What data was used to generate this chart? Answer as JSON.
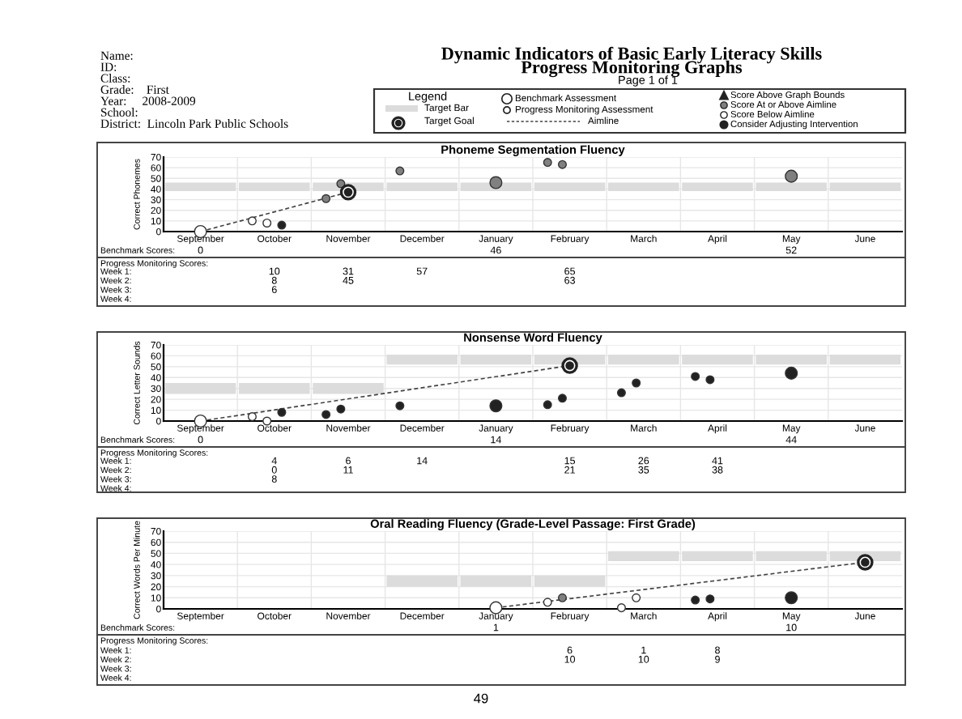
{
  "chart_data": [
    {
      "type": "other",
      "title": "Dynamic Indicators of Basic Early Literacy Skills",
      "subtitle": "Progress Monitoring Graphs",
      "annotations": [
        "Name:",
        "ID:",
        "Class:",
        "Grade:    First",
        "Year:     2008-2009",
        "School:",
        "District:  Lincoln Park Public Schools",
        "Page 1 of 1",
        "Legend",
        "Target Bar",
        "Target Goal",
        "Benchmark Assessment",
        "Progress Monitoring Assessment",
        "Aimline",
        "Score Above Graph Bounds",
        "Score At or Above Aimline",
        "Score Below Aimline",
        "Consider Adjusting Intervention",
        "49"
      ]
    },
    {
      "type": "scatter",
      "title": "Phoneme Segmentation Fluency",
      "ylabel": "Correct Phonemes",
      "categories": [
        "September",
        "October",
        "November",
        "December",
        "January",
        "February",
        "March",
        "April",
        "May",
        "June"
      ],
      "ylim": [
        0,
        70
      ],
      "yticks": [
        0,
        10,
        20,
        30,
        40,
        50,
        60,
        70
      ],
      "grid": true,
      "annotations": [
        "Benchmark Scores:",
        "Progress Monitoring Scores:",
        "Week 1:",
        "Week 2:",
        "Week 3:",
        "Week 4:",
        "6"
      ],
      "series": [
        {
          "type": "bar",
          "color": "#dcdcdc",
          "base": [
            38,
            38,
            38,
            38,
            38,
            38,
            38,
            38,
            38,
            38
          ],
          "values": [
            8,
            8,
            8,
            8,
            8,
            8,
            8,
            8,
            8,
            8
          ]
        },
        {
          "type": "line",
          "line_style": "dashed",
          "color": "#444444",
          "values": [
            0,
            null,
            37,
            null,
            null,
            null,
            null,
            null,
            null,
            null
          ]
        },
        {
          "type": "scatter",
          "values": [
            0,
            null,
            null,
            null,
            46,
            null,
            null,
            null,
            52,
            null
          ],
          "value_labels": [
            "0",
            null,
            null,
            null,
            "46",
            null,
            null,
            null,
            "52",
            null
          ],
          "colors": [
            "#ffffff",
            null,
            null,
            null,
            "#808080",
            null,
            null,
            null,
            "#808080",
            null
          ]
        },
        {
          "type": "scatter",
          "values": [
            null,
            10,
            31,
            57,
            null,
            65,
            null,
            null,
            null,
            null
          ],
          "value_labels": [
            null,
            "10",
            "31",
            "57",
            null,
            "65",
            null,
            null,
            null,
            null
          ],
          "colors": [
            null,
            "#ffffff",
            "#808080",
            "#808080",
            null,
            "#808080",
            null,
            null,
            null,
            null
          ]
        },
        {
          "type": "scatter",
          "values": [
            null,
            8,
            45,
            null,
            null,
            63,
            null,
            null,
            null,
            null
          ],
          "value_labels": [
            null,
            "8",
            "45",
            null,
            null,
            "63",
            null,
            null,
            null,
            null
          ],
          "colors": [
            null,
            "#ffffff",
            "#808080",
            null,
            null,
            "#808080",
            null,
            null,
            null,
            null
          ]
        },
        {
          "type": "scatter",
          "values": [
            null,
            6,
            null,
            null,
            null,
            null,
            null,
            null,
            null,
            null
          ],
          "colors": [
            null,
            "#222222",
            null,
            null,
            null,
            null,
            null,
            null,
            null,
            null
          ]
        },
        {
          "type": "scatter",
          "color": "#222222",
          "values": [
            null,
            null,
            37,
            null,
            null,
            null,
            null,
            null,
            null,
            null
          ]
        }
      ]
    },
    {
      "type": "scatter",
      "title": "Nonsense Word Fluency",
      "ylabel": "Correct Letter Sounds",
      "categories": [
        "September",
        "October",
        "November",
        "December",
        "January",
        "February",
        "March",
        "April",
        "May",
        "June"
      ],
      "ylim": [
        0,
        70
      ],
      "yticks": [
        0,
        10,
        20,
        30,
        40,
        50,
        60,
        70
      ],
      "grid": true,
      "annotations": [
        "Benchmark Scores:",
        "Progress Monitoring Scores:",
        "Week 1:",
        "Week 2:",
        "Week 3:",
        "Week 4:",
        "8"
      ],
      "series": [
        {
          "type": "bar",
          "color": "#dcdcdc",
          "base": [
            25,
            25,
            25,
            52,
            52,
            52,
            52,
            52,
            52,
            52
          ],
          "values": [
            10,
            10,
            10,
            9,
            9,
            9,
            9,
            9,
            9,
            9
          ]
        },
        {
          "type": "line",
          "line_style": "dashed",
          "color": "#444444",
          "values": [
            0,
            null,
            null,
            null,
            null,
            51,
            null,
            null,
            null,
            null
          ]
        },
        {
          "type": "scatter",
          "values": [
            0,
            null,
            null,
            null,
            14,
            null,
            null,
            null,
            44,
            null
          ],
          "value_labels": [
            "0",
            null,
            null,
            null,
            "14",
            null,
            null,
            null,
            "44",
            null
          ],
          "colors": [
            "#ffffff",
            null,
            null,
            null,
            "#222222",
            null,
            null,
            null,
            "#222222",
            null
          ]
        },
        {
          "type": "scatter",
          "values": [
            null,
            4,
            6,
            14,
            null,
            15,
            26,
            41,
            null,
            null
          ],
          "value_labels": [
            null,
            "4",
            "6",
            "14",
            null,
            "15",
            "26",
            "41",
            null,
            null
          ],
          "colors": [
            null,
            "#ffffff",
            "#222222",
            "#222222",
            null,
            "#222222",
            "#222222",
            "#222222",
            null,
            null
          ]
        },
        {
          "type": "scatter",
          "values": [
            null,
            0,
            11,
            null,
            null,
            21,
            35,
            38,
            null,
            null
          ],
          "value_labels": [
            null,
            "0",
            "11",
            null,
            null,
            "21",
            "35",
            "38",
            null,
            null
          ],
          "colors": [
            null,
            "#ffffff",
            "#222222",
            null,
            null,
            "#222222",
            "#222222",
            "#222222",
            null,
            null
          ]
        },
        {
          "type": "scatter",
          "values": [
            null,
            8,
            null,
            null,
            null,
            null,
            null,
            null,
            null,
            null
          ],
          "colors": [
            null,
            "#222222",
            null,
            null,
            null,
            null,
            null,
            null,
            null,
            null
          ]
        },
        {
          "type": "scatter",
          "color": "#222222",
          "values": [
            null,
            null,
            null,
            null,
            null,
            51,
            null,
            null,
            null,
            null
          ]
        }
      ]
    },
    {
      "type": "scatter",
      "title": "Oral Reading Fluency (Grade-Level Passage: First Grade)",
      "ylabel": "Correct Words Per Minute",
      "categories": [
        "September",
        "October",
        "November",
        "December",
        "January",
        "February",
        "March",
        "April",
        "May",
        "June"
      ],
      "ylim": [
        0,
        70
      ],
      "yticks": [
        0,
        10,
        20,
        30,
        40,
        50,
        60,
        70
      ],
      "grid": true,
      "annotations": [
        "Benchmark Scores:",
        "Progress Monitoring Scores:",
        "Week 1:",
        "Week 2:",
        "Week 3:",
        "Week 4:"
      ],
      "series": [
        {
          "type": "bar",
          "color": "#dcdcdc",
          "base": [
            null,
            null,
            null,
            20,
            20,
            20,
            43,
            43,
            43,
            43
          ],
          "values": [
            null,
            null,
            null,
            10,
            10,
            10,
            9,
            9,
            9,
            9
          ]
        },
        {
          "type": "line",
          "line_style": "dashed",
          "color": "#444444",
          "values": [
            null,
            null,
            null,
            null,
            1,
            null,
            null,
            null,
            null,
            42
          ]
        },
        {
          "type": "scatter",
          "values": [
            null,
            null,
            null,
            null,
            1,
            null,
            null,
            null,
            10,
            null
          ],
          "value_labels": [
            null,
            null,
            null,
            null,
            "1",
            null,
            null,
            null,
            "10",
            null
          ],
          "colors": [
            null,
            null,
            null,
            null,
            "#ffffff",
            null,
            null,
            null,
            "#222222",
            null
          ]
        },
        {
          "type": "scatter",
          "values": [
            null,
            null,
            null,
            null,
            null,
            6,
            1,
            8,
            null,
            null
          ],
          "value_labels": [
            null,
            null,
            null,
            null,
            null,
            "6",
            "1",
            "8",
            null,
            null
          ],
          "colors": [
            null,
            null,
            null,
            null,
            null,
            "#ffffff",
            "#ffffff",
            "#222222",
            null,
            null
          ]
        },
        {
          "type": "scatter",
          "values": [
            null,
            null,
            null,
            null,
            null,
            10,
            10,
            9,
            null,
            null
          ],
          "value_labels": [
            null,
            null,
            null,
            null,
            null,
            "10",
            "10",
            "9",
            null,
            null
          ],
          "colors": [
            null,
            null,
            null,
            null,
            null,
            "#808080",
            "#ffffff",
            "#222222",
            null,
            null
          ]
        },
        {
          "type": "scatter",
          "color": "#222222",
          "values": [
            null,
            null,
            null,
            null,
            null,
            null,
            null,
            null,
            null,
            42
          ]
        }
      ]
    }
  ]
}
